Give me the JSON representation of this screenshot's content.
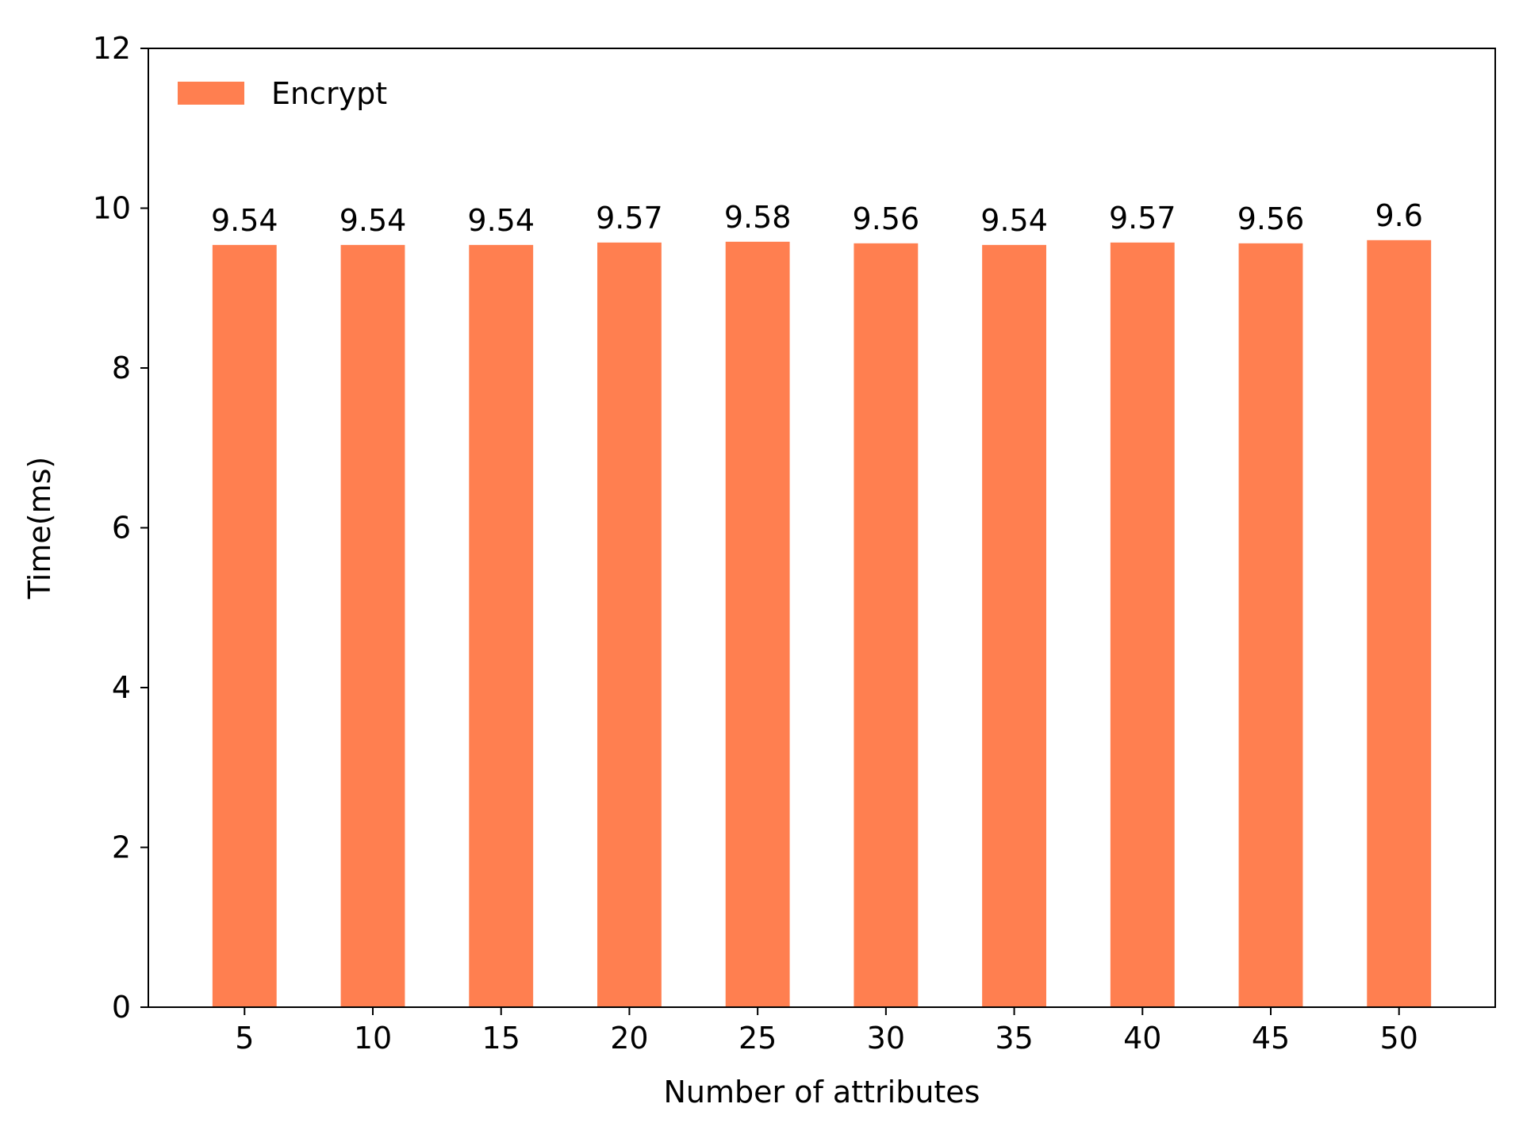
{
  "chart_data": {
    "type": "bar",
    "xlabel": "Number of attributes",
    "ylabel": "Time(ms)",
    "categories": [
      "5",
      "10",
      "15",
      "20",
      "25",
      "30",
      "35",
      "40",
      "45",
      "50"
    ],
    "series": [
      {
        "name": "Encrypt",
        "color": "#ff7f50",
        "values": [
          9.54,
          9.54,
          9.54,
          9.57,
          9.58,
          9.56,
          9.54,
          9.57,
          9.56,
          9.6
        ]
      }
    ],
    "data_labels": [
      "9.54",
      "9.54",
      "9.54",
      "9.57",
      "9.58",
      "9.56",
      "9.54",
      "9.57",
      "9.56",
      "9.6"
    ],
    "ylim": [
      0,
      12
    ],
    "yticks": [
      "0",
      "2",
      "4",
      "6",
      "8",
      "10",
      "12"
    ],
    "grid": false,
    "legend_position": "top-left"
  }
}
